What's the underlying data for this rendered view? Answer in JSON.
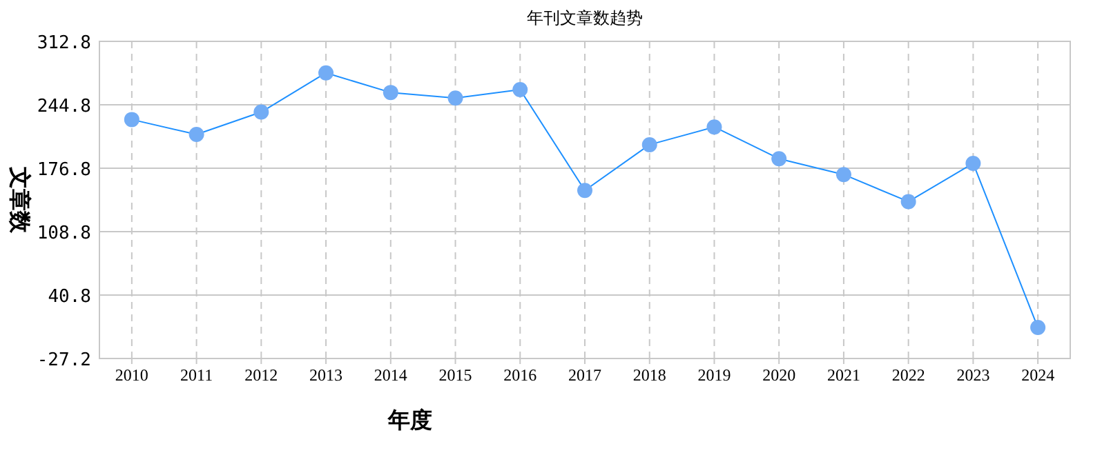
{
  "chart_data": {
    "type": "line",
    "title": "年刊文章数趋势",
    "xlabel": "年度",
    "ylabel": "文章数",
    "categories": [
      "2010",
      "2011",
      "2012",
      "2013",
      "2014",
      "2015",
      "2016",
      "2017",
      "2018",
      "2019",
      "2020",
      "2021",
      "2022",
      "2023",
      "2024"
    ],
    "series": [
      {
        "color": "#1e90ff",
        "values": [
          229,
          213,
          237,
          279,
          258,
          252,
          261,
          153,
          202,
          221,
          187,
          170,
          141,
          182,
          6
        ]
      }
    ],
    "ylim": [
      -27.2,
      312.8
    ],
    "yticks": [
      -27.2,
      40.8,
      108.8,
      176.8,
      244.8,
      312.8
    ],
    "grid": true,
    "marker": "circle",
    "line_style": "solid"
  }
}
